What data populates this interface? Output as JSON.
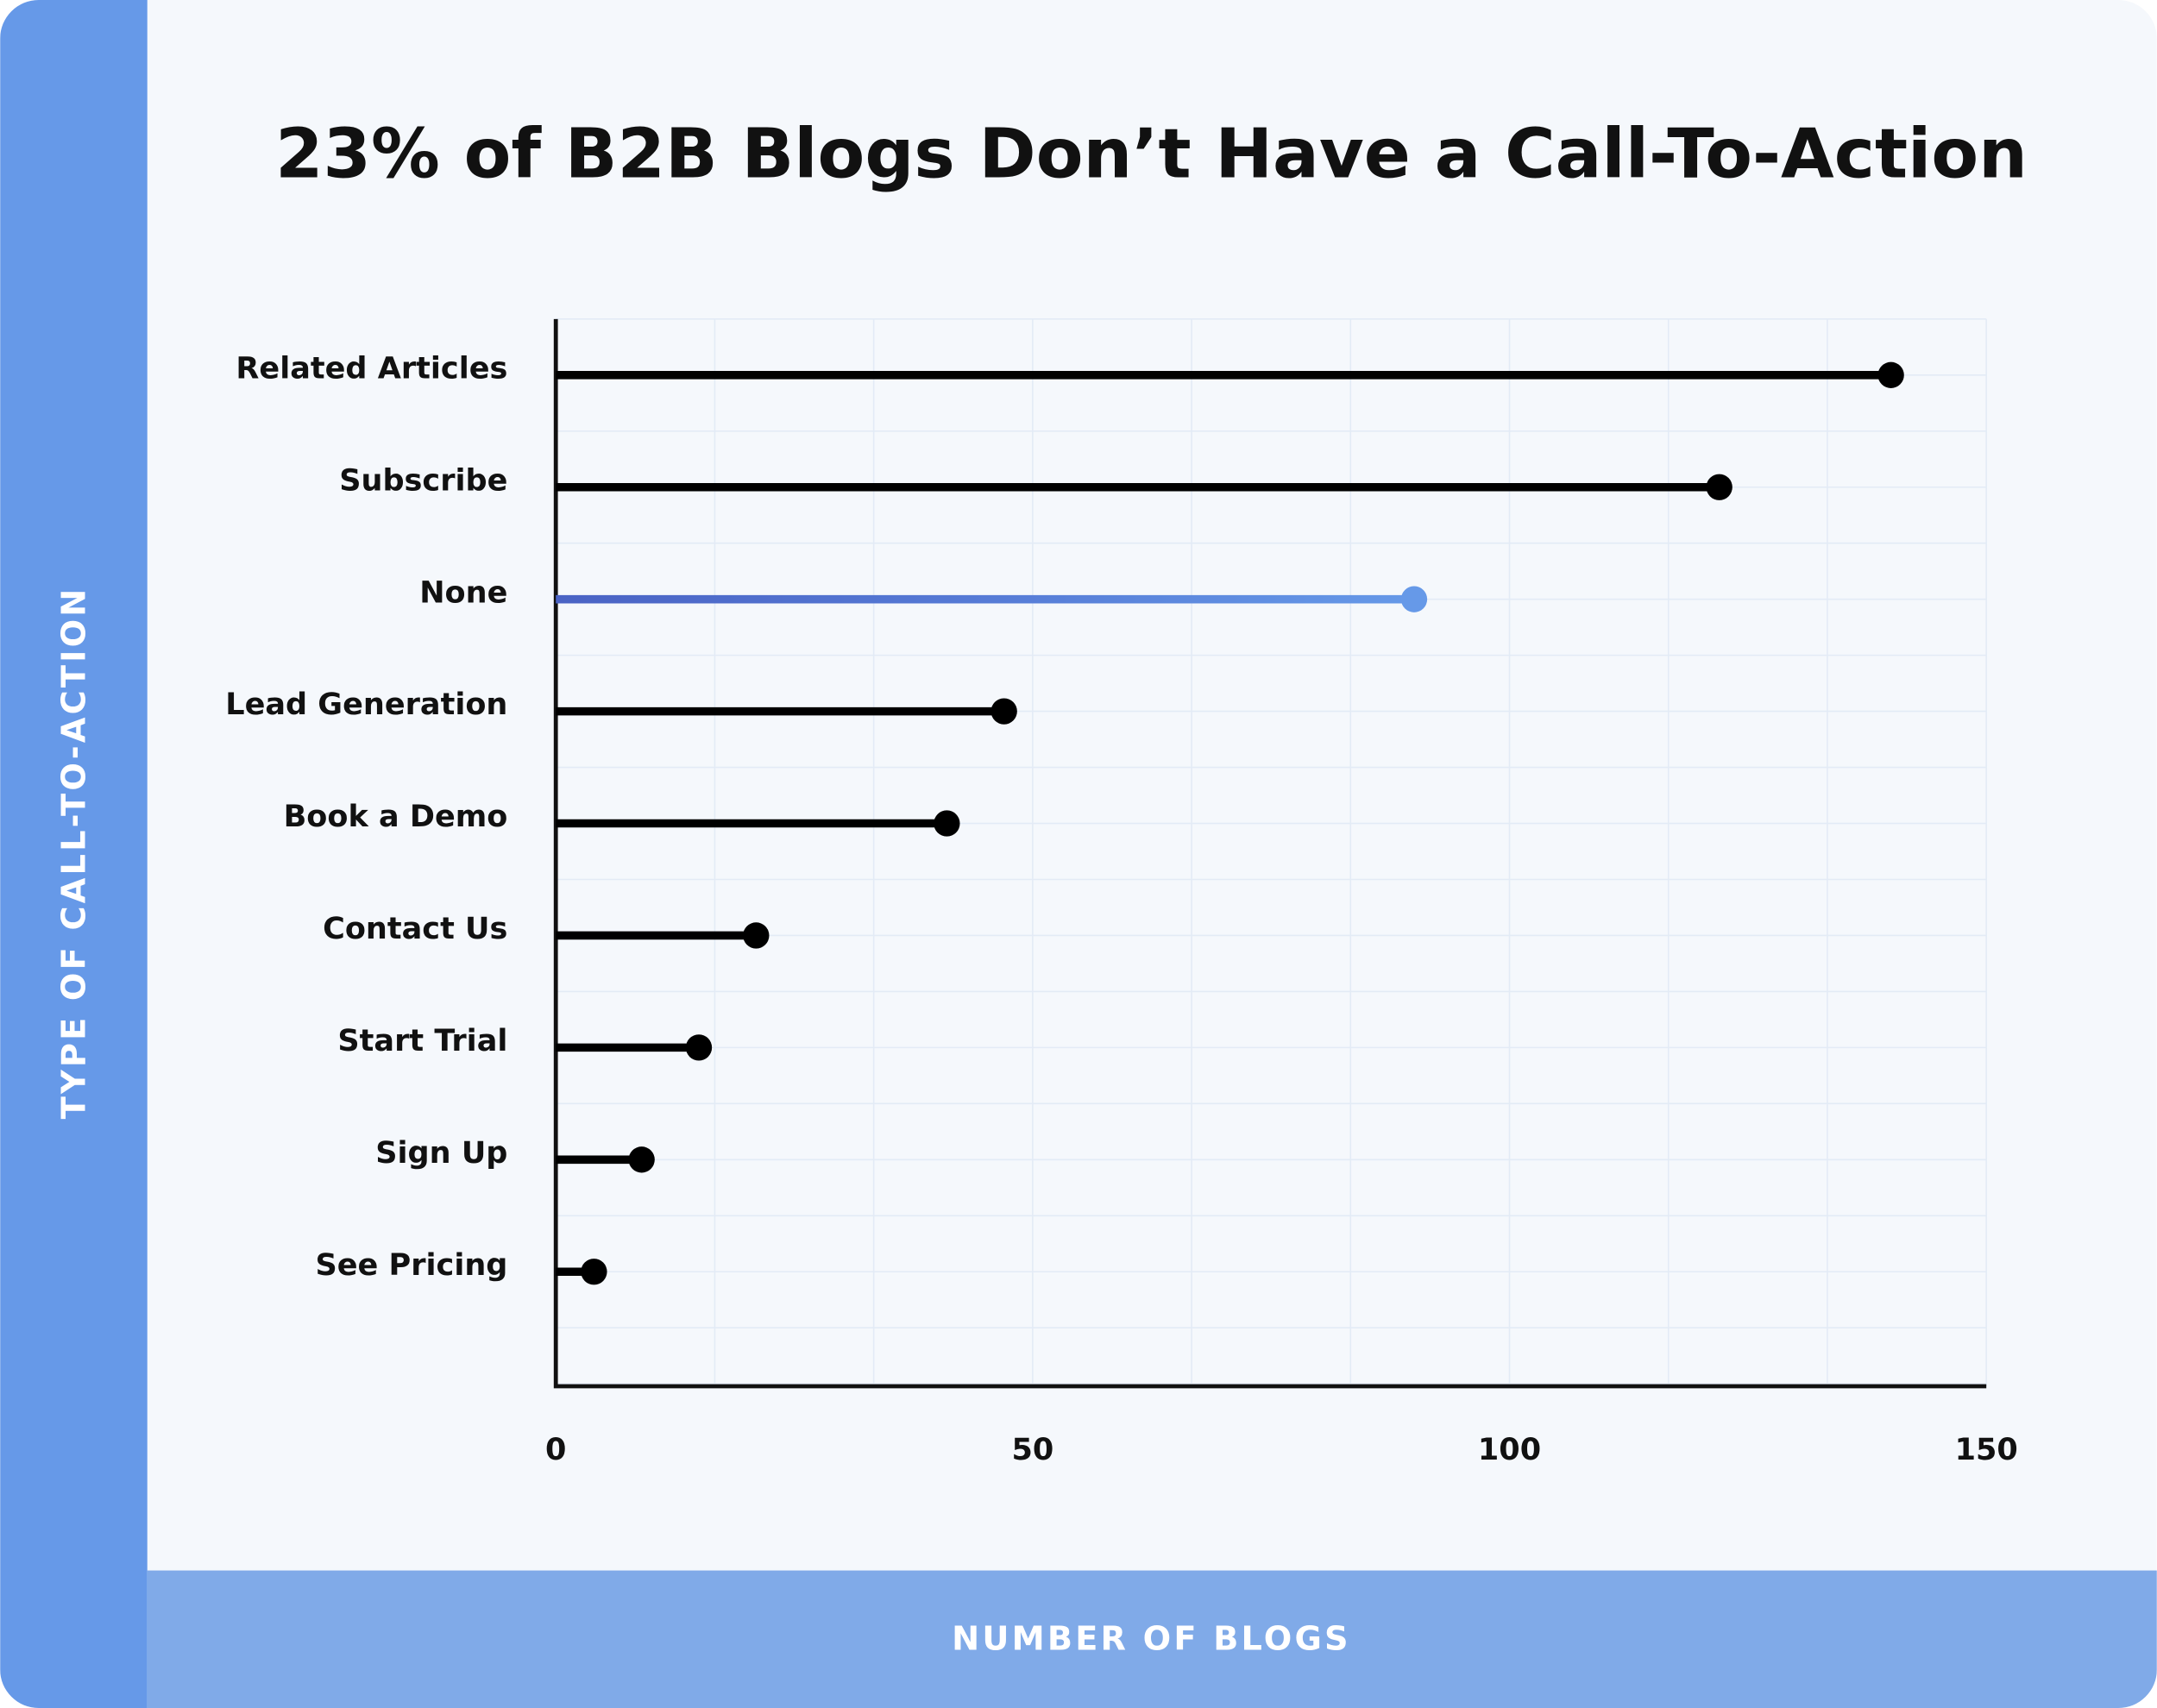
{
  "chart_data": {
    "type": "lollipop",
    "title": "23% of B2B Blogs Don’t Have a Call-To-Action",
    "x_label": "NUMBER OF BLOGS",
    "y_label": "TYPE OF CALL-TO-ACTION",
    "categories": [
      "Related Articles",
      "Subscribe",
      "None",
      "Lead Generation",
      "Book a Demo",
      "Contact Us",
      "Start Trial",
      "Sign Up",
      "See Pricing"
    ],
    "values": [
      140,
      122,
      90,
      47,
      41,
      21,
      15,
      9,
      4
    ],
    "colors": [
      "#000000",
      "#000000",
      "#6699e8",
      "#000000",
      "#000000",
      "#000000",
      "#000000",
      "#000000",
      "#000000"
    ],
    "xlim": [
      0,
      150
    ],
    "xticks": [
      0,
      50,
      100,
      150
    ],
    "grid": true
  }
}
